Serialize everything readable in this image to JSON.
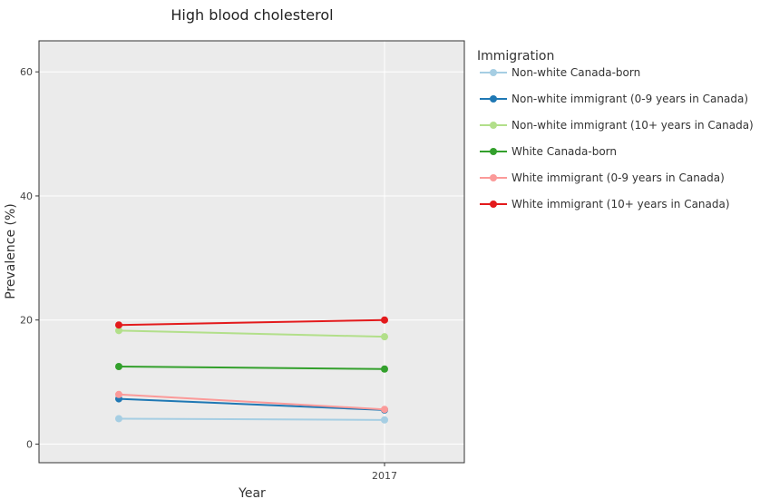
{
  "chart_data": {
    "type": "line",
    "title": "High blood cholesterol",
    "xlabel": "Year",
    "ylabel": "Prevalence (%)",
    "ylim": [
      -3,
      65
    ],
    "yticks": [
      0,
      20,
      40,
      60
    ],
    "x": [
      "",
      "2017"
    ],
    "xtick_labels": [
      "2017"
    ],
    "legend_title": "Immigration",
    "legend_position": "right",
    "grid": true,
    "series": [
      {
        "name": "Non-white Canada-born",
        "color": "#a6cee3",
        "values": [
          4.1,
          3.9
        ]
      },
      {
        "name": "Non-white immigrant (0-9 years in Canada)",
        "color": "#1f78b4",
        "values": [
          7.3,
          5.5
        ]
      },
      {
        "name": "Non-white immigrant (10+ years in Canada)",
        "color": "#b2df8a",
        "values": [
          18.3,
          17.3
        ]
      },
      {
        "name": "White Canada-born",
        "color": "#33a02c",
        "values": [
          12.5,
          12.1
        ]
      },
      {
        "name": "White immigrant  (0-9 years in Canada)",
        "color": "#fb9a99",
        "values": [
          8.0,
          5.6
        ]
      },
      {
        "name": "White immigrant (10+ years in Canada)",
        "color": "#e31a1c",
        "values": [
          19.2,
          20.0
        ]
      }
    ]
  }
}
